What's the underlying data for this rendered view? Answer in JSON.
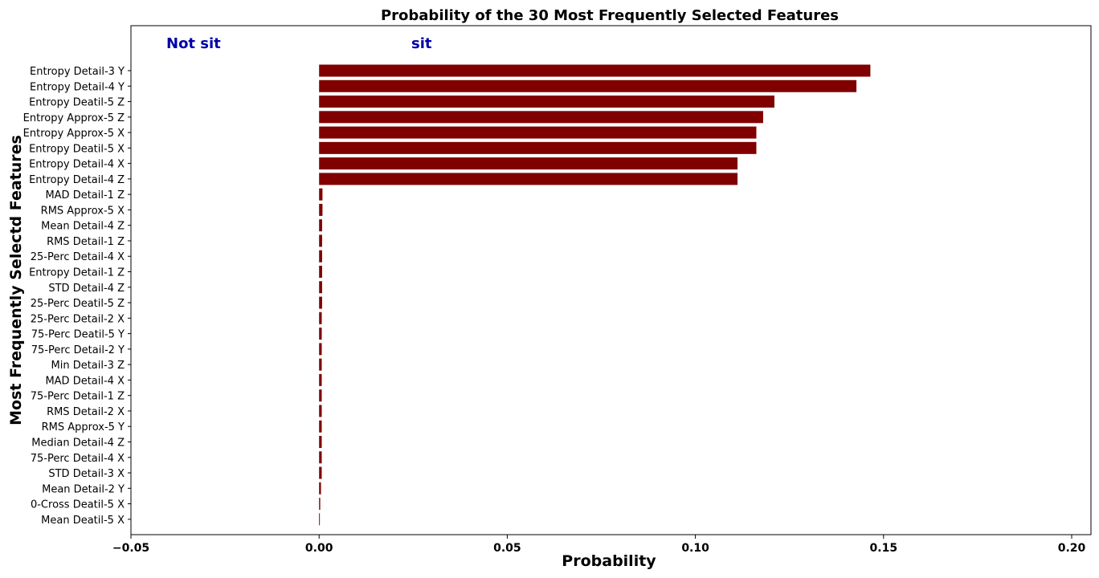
{
  "chart_data": {
    "type": "bar",
    "orientation": "horizontal",
    "title": "Probability of the 30 Most Frequently Selected Features",
    "xlabel": "Probability",
    "ylabel": "Most Frequently Selectd Features",
    "xlim": [
      -0.05,
      0.205
    ],
    "xticks": [
      -0.05,
      0.0,
      0.05,
      0.1,
      0.15,
      0.2
    ],
    "xtick_labels": [
      "−0.05",
      "0.00",
      "0.05",
      "0.10",
      "0.15",
      "0.20"
    ],
    "grid": false,
    "bar_color": "#800000",
    "annotations": [
      {
        "text": "Not sit",
        "color": "#0000aa"
      },
      {
        "text": "sit",
        "color": "#0000aa"
      }
    ],
    "categories": [
      "Entropy Detail-3 Y",
      "Entropy Detail-4 Y",
      "Entropy Deatil-5 Z",
      "Entropy Approx-5 Z",
      "Entropy Approx-5 X",
      "Entropy Deatil-5 X",
      "Entropy Detail-4 X",
      "Entropy Detail-4 Z",
      "MAD Detail-1 Z",
      "RMS Approx-5 X",
      "Mean Detail-4 Z",
      "RMS Detail-1 Z",
      "25-Perc Detail-4 X",
      "Entropy Detail-1 Z",
      "STD Detail-4 Z",
      "25-Perc Deatil-5 Z",
      "25-Perc Detail-2 X",
      "75-Perc Deatil-5 Y",
      "75-Perc Detail-2 Y",
      "Min Detail-3 Z",
      "MAD Detail-4 X",
      "75-Perc Detail-1 Z",
      "RMS Detail-2 X",
      "RMS Approx-5 Y",
      "Median Detail-4 Z",
      "75-Perc Detail-4 X",
      "STD Detail-3 X",
      "Mean Detail-2 Y",
      "0-Cross Deatil-5 X",
      "Mean Deatil-5 X"
    ],
    "values": [
      0.1465,
      0.1428,
      0.121,
      0.118,
      0.1162,
      0.1162,
      0.1112,
      0.1112,
      0.0009,
      0.0009,
      0.0008,
      0.0008,
      0.0008,
      0.0008,
      0.0008,
      0.0008,
      0.0007,
      0.0007,
      0.0007,
      0.0007,
      0.0007,
      0.0007,
      0.0007,
      0.0007,
      0.0007,
      0.0007,
      0.0007,
      0.0005,
      0.0003,
      0.0002
    ]
  }
}
